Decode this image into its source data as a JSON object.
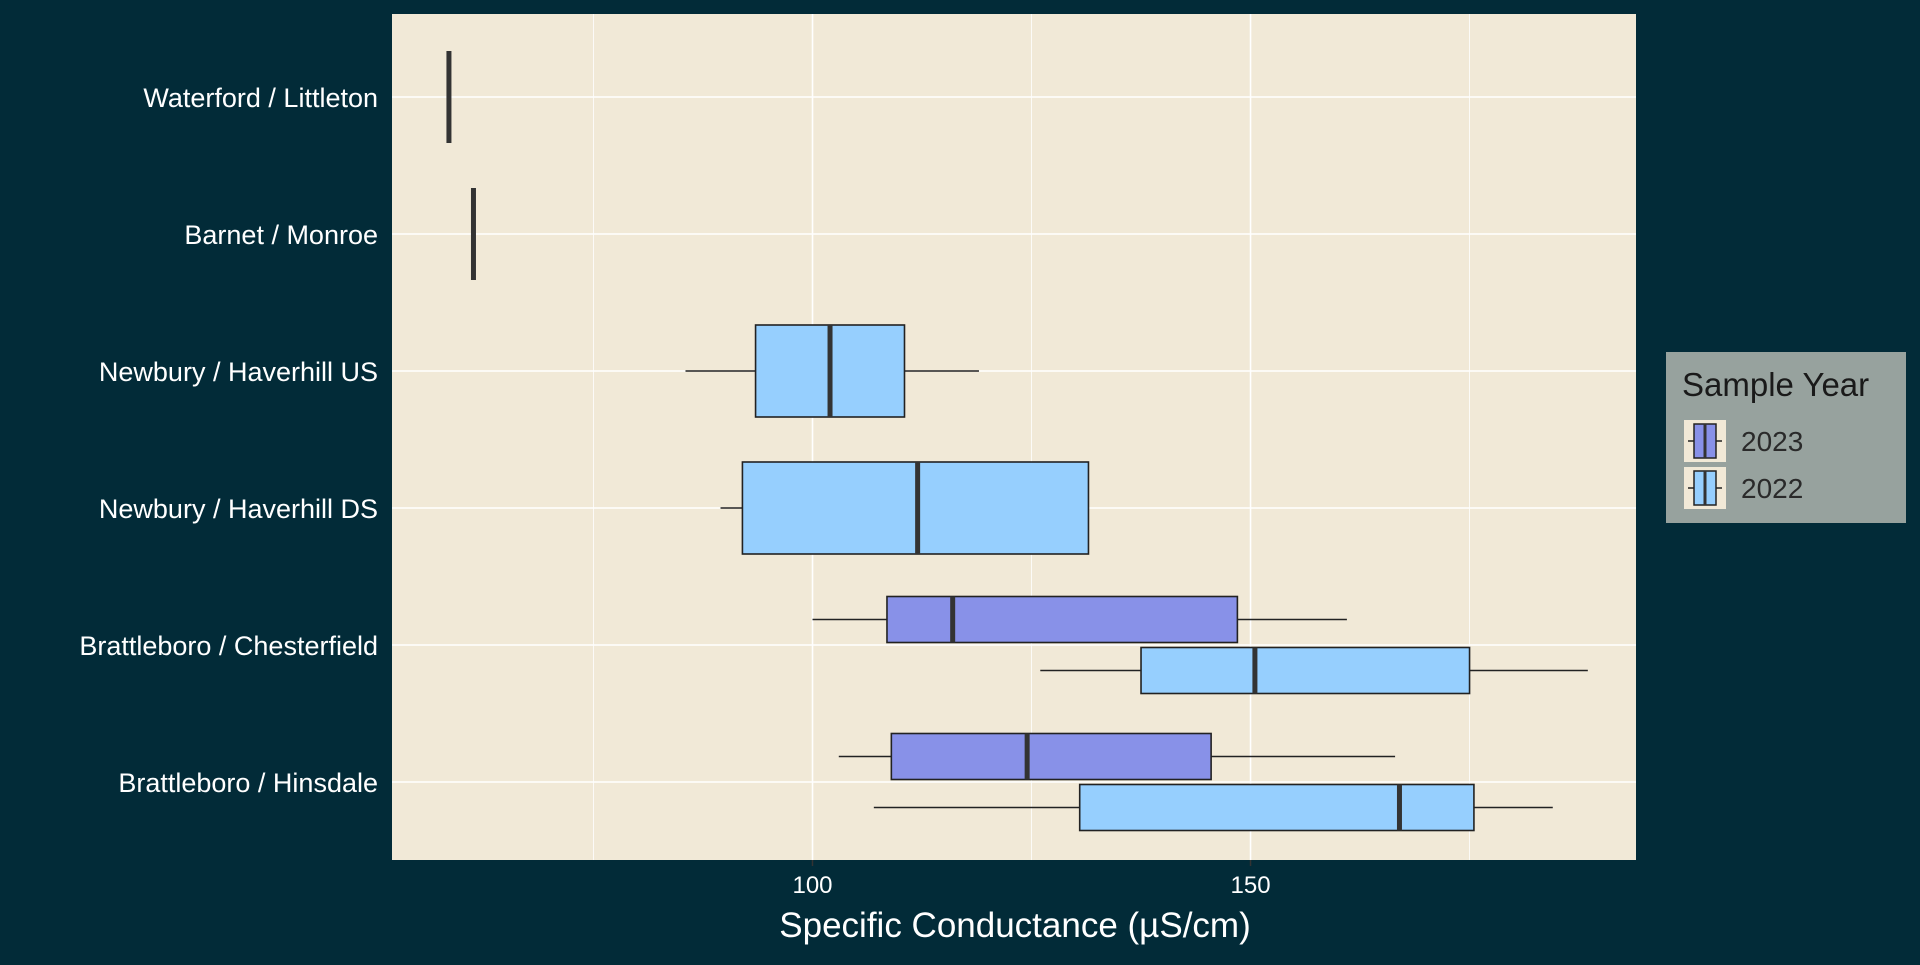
{
  "chart_data": {
    "type": "boxplot",
    "orientation": "horizontal",
    "xlabel": "Specific Conductance (µS/cm)",
    "x_ticks": [
      100,
      150
    ],
    "xlim": [
      52,
      194
    ],
    "grid": true,
    "categories": [
      "Waterford / Littleton",
      "Barnet / Monroe",
      "Newbury / Haverhill US",
      "Newbury / Haverhill DS",
      "Brattleboro / Chesterfield",
      "Brattleboro / Hinsdale"
    ],
    "legend": {
      "title": "Sample Year",
      "position": "right",
      "entries": [
        {
          "label": "2023",
          "color": "#8891e8"
        },
        {
          "label": "2022",
          "color": "#96cffe"
        }
      ]
    },
    "series": [
      {
        "name": "2023",
        "color": "#8891e8",
        "boxes": [
          {
            "category": "Brattleboro / Chesterfield",
            "min": 100,
            "q1": 108.5,
            "median": 116,
            "q3": 148.5,
            "max": 161
          },
          {
            "category": "Brattleboro / Hinsdale",
            "min": 103,
            "q1": 109,
            "median": 124.5,
            "q3": 145.5,
            "max": 166.5
          }
        ]
      },
      {
        "name": "2022",
        "color": "#96cffe",
        "boxes": [
          {
            "category": "Waterford / Littleton",
            "min": 58.5,
            "q1": 58.5,
            "median": 58.5,
            "q3": 58.5,
            "max": 58.5
          },
          {
            "category": "Barnet / Monroe",
            "min": 61.3,
            "q1": 61.3,
            "median": 61.3,
            "q3": 61.3,
            "max": 61.3
          },
          {
            "category": "Newbury / Haverhill US",
            "min": 85.5,
            "q1": 93.5,
            "median": 102,
            "q3": 110.5,
            "max": 119
          },
          {
            "category": "Newbury / Haverhill DS",
            "min": 89.5,
            "q1": 92,
            "median": 112,
            "q3": 131.5,
            "max": 131.5
          },
          {
            "category": "Brattleboro / Chesterfield",
            "min": 126,
            "q1": 137.5,
            "median": 150.5,
            "q3": 175,
            "max": 188.5
          },
          {
            "category": "Brattleboro / Hinsdale",
            "min": 107,
            "q1": 130.5,
            "median": 167,
            "q3": 175.5,
            "max": 184.5
          }
        ]
      }
    ]
  }
}
